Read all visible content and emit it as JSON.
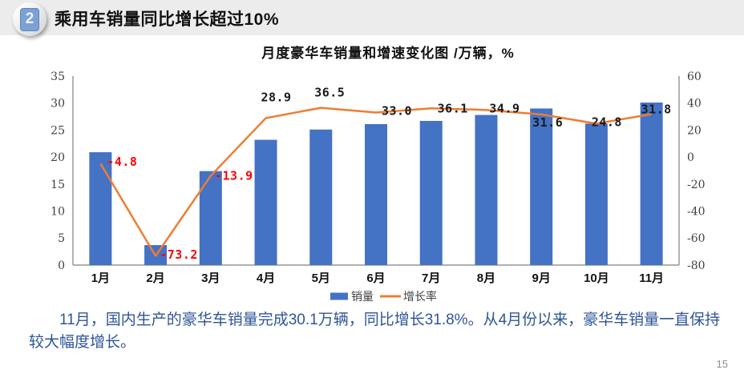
{
  "header": {
    "badge": "2",
    "title": "乘用车销量同比增长超过10%"
  },
  "chart_title": "月度豪华车销量和增速变化图  /万辆，%",
  "chart_data": {
    "type": "bar",
    "title": "月度豪华车销量和增速变化图 /万辆，%",
    "categories": [
      "1月",
      "2月",
      "3月",
      "4月",
      "5月",
      "6月",
      "7月",
      "8月",
      "9月",
      "10月",
      "11月"
    ],
    "series": [
      {
        "name": "销量",
        "type": "bar",
        "axis": "left",
        "color": "#4472C4",
        "values": [
          20.9,
          3.7,
          17.4,
          23.2,
          25.1,
          26.1,
          26.7,
          27.8,
          29.0,
          26.2,
          30.1
        ]
      },
      {
        "name": "增长率",
        "type": "line",
        "axis": "right",
        "color": "#ED7D31",
        "values": [
          -4.8,
          -73.2,
          -13.9,
          28.9,
          36.5,
          33.0,
          36.1,
          34.9,
          31.6,
          24.8,
          31.8
        ],
        "labels": [
          "-4.8",
          "-73.2",
          "-13.9",
          "28.9",
          "36.5",
          "33.0",
          "36.1",
          "34.9",
          "31.6",
          "24.8",
          "31.8"
        ]
      }
    ],
    "left_axis": {
      "min": 0,
      "max": 35,
      "ticks": [
        0,
        5,
        10,
        15,
        20,
        25,
        30,
        35
      ]
    },
    "right_axis": {
      "min": -80,
      "max": 60,
      "ticks": [
        -80,
        -60,
        -40,
        -20,
        0,
        20,
        40,
        60
      ]
    },
    "label_color_negative": "#FF0000",
    "label_color_positive": "#1A1A1A",
    "axis_color": "#808080",
    "grid": false,
    "legend_position": "bottom"
  },
  "footer": {
    "paragraph": "11月，国内生产的豪华车销量完成30.1万辆，同比增长31.8%。从4月份以来，豪华车销量一直保持较大幅度增长。",
    "page_number": "15"
  }
}
